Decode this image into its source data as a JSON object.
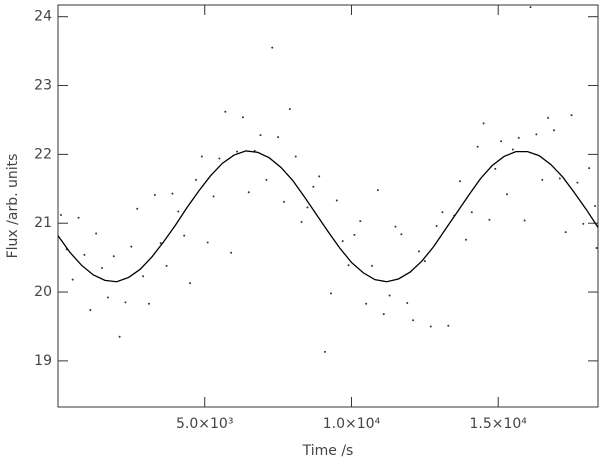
{
  "chart_data": {
    "type": "scatter",
    "x_label": "Time /s",
    "y_label": "Flux /arb. units",
    "xlim": [
      0,
      18400
    ],
    "ylim": [
      18.33,
      24.17
    ],
    "xticks": [
      {
        "value": 5000,
        "label": "5.0×10³"
      },
      {
        "value": 10000,
        "label": "1.0×10⁴"
      },
      {
        "value": 15000,
        "label": "1.5×10⁴"
      }
    ],
    "yticks": [
      19,
      20,
      21,
      22,
      23,
      24
    ],
    "series": [
      {
        "type": "scatter",
        "color": "#333333",
        "x": [
          100,
          500,
          900,
          1300,
          1700,
          2100,
          2500,
          2900,
          3300,
          3700,
          4100,
          4500,
          4900,
          5300,
          5700,
          6100,
          6500,
          6900,
          7300,
          7700,
          8100,
          8500,
          8900,
          9300,
          9700,
          10100,
          10500,
          10900,
          11300,
          11700,
          12100,
          12500,
          12900,
          13300,
          13700,
          14100,
          14500,
          14900,
          15300,
          15700,
          16100,
          16500,
          16900,
          17300,
          17700,
          18100,
          18350,
          300,
          700,
          1100,
          1500,
          1900,
          2300,
          2700,
          3100,
          3500,
          3900,
          4300,
          4700,
          5100,
          5500,
          5900,
          6300,
          6700,
          7100,
          7500,
          7900,
          8300,
          8700,
          9100,
          9500,
          9900,
          10300,
          10700,
          11100,
          11500,
          11900,
          12300,
          12700,
          13100,
          13500,
          13900,
          14300,
          14700,
          15100,
          15500,
          15900,
          16300,
          16700,
          17100,
          17500,
          17900,
          18300
        ],
        "values": [
          21.12,
          20.18,
          20.54,
          20.85,
          19.92,
          19.35,
          20.66,
          20.23,
          21.41,
          20.38,
          21.17,
          20.13,
          21.97,
          21.39,
          22.62,
          22.04,
          21.45,
          22.28,
          23.55,
          21.31,
          21.97,
          21.23,
          21.68,
          19.98,
          20.74,
          20.83,
          19.83,
          21.48,
          19.95,
          20.84,
          19.59,
          20.45,
          20.96,
          19.51,
          21.61,
          21.16,
          22.45,
          21.79,
          21.42,
          22.24,
          24.14,
          21.63,
          22.35,
          20.87,
          21.59,
          21.8,
          20.64,
          20.62,
          21.08,
          19.74,
          20.35,
          20.52,
          19.85,
          21.21,
          19.83,
          20.71,
          21.43,
          20.82,
          21.63,
          20.72,
          21.94,
          20.57,
          22.54,
          22.05,
          21.63,
          22.25,
          22.66,
          21.02,
          21.53,
          19.13,
          21.33,
          20.39,
          21.03,
          20.38,
          19.68,
          20.95,
          19.84,
          20.59,
          19.5,
          21.16,
          21.11,
          20.76,
          22.11,
          21.05,
          22.19,
          22.07,
          21.04,
          22.29,
          22.53,
          21.65,
          22.57,
          20.99,
          21.25
        ]
      },
      {
        "type": "line",
        "color": "#000000",
        "x": [
          0,
          400,
          800,
          1200,
          1600,
          2000,
          2400,
          2800,
          3200,
          3600,
          4000,
          4400,
          4800,
          5200,
          5600,
          6000,
          6400,
          6800,
          7200,
          7600,
          8000,
          8400,
          8800,
          9200,
          9600,
          10000,
          10400,
          10800,
          11200,
          11600,
          12000,
          12400,
          12800,
          13200,
          13600,
          14000,
          14400,
          14800,
          15200,
          15600,
          16000,
          16400,
          16800,
          17200,
          17600,
          18000,
          18400
        ],
        "values": [
          20.82,
          20.58,
          20.39,
          20.25,
          20.17,
          20.15,
          20.21,
          20.33,
          20.51,
          20.73,
          20.97,
          21.23,
          21.47,
          21.69,
          21.87,
          21.99,
          22.05,
          22.03,
          21.95,
          21.81,
          21.62,
          21.38,
          21.13,
          20.88,
          20.64,
          20.43,
          20.28,
          20.18,
          20.15,
          20.19,
          20.29,
          20.45,
          20.66,
          20.91,
          21.16,
          21.41,
          21.65,
          21.84,
          21.97,
          22.04,
          22.04,
          21.98,
          21.85,
          21.67,
          21.44,
          21.2,
          20.94
        ]
      }
    ]
  }
}
